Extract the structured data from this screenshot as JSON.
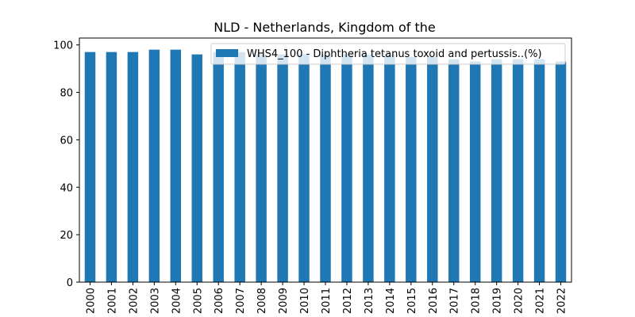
{
  "chart_data": {
    "type": "bar",
    "title": "NLD - Netherlands, Kingdom of the",
    "xlabel": "",
    "ylabel": "",
    "categories": [
      "2000",
      "2001",
      "2002",
      "2003",
      "2004",
      "2005",
      "2006",
      "2007",
      "2008",
      "2009",
      "2010",
      "2011",
      "2012",
      "2013",
      "2014",
      "2015",
      "2016",
      "2017",
      "2018",
      "2019",
      "2020",
      "2021",
      "2022"
    ],
    "series": [
      {
        "name": "WHS4_100 - Diphtheria tetanus toxoid and pertussis..(%)",
        "values": [
          97,
          97,
          97,
          98,
          98,
          96,
          97,
          97,
          96,
          96,
          96,
          96,
          96,
          96,
          96,
          95,
          95,
          94,
          93,
          94,
          94,
          94,
          93
        ]
      }
    ],
    "ylim": [
      0,
      102.9
    ],
    "yticks": [
      0,
      20,
      40,
      60,
      80,
      100
    ],
    "grid": false,
    "legend_position": "top-right",
    "colors": {
      "bar": "#1f77b4",
      "axis": "#000000",
      "background": "#ffffff"
    }
  }
}
